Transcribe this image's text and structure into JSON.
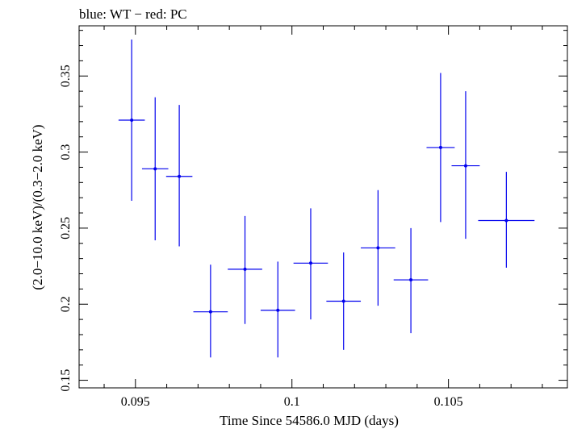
{
  "chart_data": {
    "type": "scatter",
    "title": "blue: WT − red: PC",
    "xlabel": "Time Since 54586.0 MJD (days)",
    "ylabel": "(2.0−10.0 keV)/(0.3−2.0 keV)",
    "xlim": [
      0.0932,
      0.1088
    ],
    "ylim": [
      0.145,
      0.383
    ],
    "x_ticks": [
      {
        "value": 0.095,
        "label": "0.095"
      },
      {
        "value": 0.1,
        "label": "0.1"
      },
      {
        "value": 0.105,
        "label": "0.105"
      }
    ],
    "y_ticks": [
      {
        "value": 0.15,
        "label": "0.15"
      },
      {
        "value": 0.2,
        "label": "0.2"
      },
      {
        "value": 0.25,
        "label": "0.25"
      },
      {
        "value": 0.3,
        "label": "0.3"
      },
      {
        "value": 0.35,
        "label": "0.35"
      }
    ],
    "grid": false,
    "color": "#0000ee",
    "series": [
      {
        "points": [
          {
            "x": 0.09488,
            "xerr": 0.00042,
            "y": 0.321,
            "ylo": 0.268,
            "yhi": 0.374
          },
          {
            "x": 0.09563,
            "xerr": 0.00042,
            "y": 0.289,
            "ylo": 0.242,
            "yhi": 0.336
          },
          {
            "x": 0.0964,
            "xerr": 0.00042,
            "y": 0.284,
            "ylo": 0.238,
            "yhi": 0.331
          },
          {
            "x": 0.0974,
            "xerr": 0.00055,
            "y": 0.195,
            "ylo": 0.165,
            "yhi": 0.226
          },
          {
            "x": 0.0985,
            "xerr": 0.00055,
            "y": 0.223,
            "ylo": 0.187,
            "yhi": 0.258
          },
          {
            "x": 0.09955,
            "xerr": 0.00055,
            "y": 0.196,
            "ylo": 0.165,
            "yhi": 0.228
          },
          {
            "x": 0.1006,
            "xerr": 0.00055,
            "y": 0.227,
            "ylo": 0.19,
            "yhi": 0.263
          },
          {
            "x": 0.10165,
            "xerr": 0.00055,
            "y": 0.202,
            "ylo": 0.17,
            "yhi": 0.234
          },
          {
            "x": 0.10275,
            "xerr": 0.00055,
            "y": 0.237,
            "ylo": 0.199,
            "yhi": 0.275
          },
          {
            "x": 0.1038,
            "xerr": 0.00055,
            "y": 0.216,
            "ylo": 0.181,
            "yhi": 0.25
          },
          {
            "x": 0.10475,
            "xerr": 0.00045,
            "y": 0.303,
            "ylo": 0.254,
            "yhi": 0.352
          },
          {
            "x": 0.10555,
            "xerr": 0.00045,
            "y": 0.291,
            "ylo": 0.243,
            "yhi": 0.34
          },
          {
            "x": 0.10685,
            "xerr": 0.0009,
            "y": 0.255,
            "ylo": 0.224,
            "yhi": 0.287
          }
        ]
      }
    ]
  }
}
